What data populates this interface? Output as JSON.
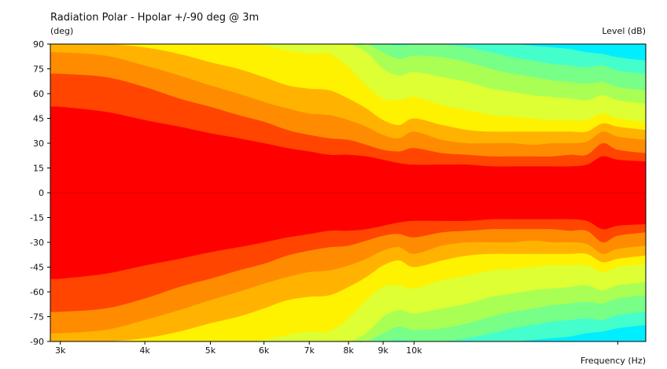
{
  "chart_data": {
    "type": "heatmap",
    "title": "Radiation Polar - Hpolar +/-90 deg @ 3m",
    "ylabel": "(deg)",
    "zlabel": "Level  (dB)",
    "xlabel": "Frequency  (Hz)",
    "x_scale": "log",
    "xlim": [
      2900,
      22000
    ],
    "ylim": [
      -90,
      90
    ],
    "x_ticks": [
      {
        "value": 3000,
        "label": "3k"
      },
      {
        "value": 4000,
        "label": "4k"
      },
      {
        "value": 5000,
        "label": "5k"
      },
      {
        "value": 6000,
        "label": "6k"
      },
      {
        "value": 7000,
        "label": "7k"
      },
      {
        "value": 8000,
        "label": "8k"
      },
      {
        "value": 9000,
        "label": "9k"
      },
      {
        "value": 10000,
        "label": "10k"
      },
      {
        "value": 20000,
        "label": ""
      }
    ],
    "y_ticks": [
      {
        "value": 90,
        "label": "90"
      },
      {
        "value": 75,
        "label": "75"
      },
      {
        "value": 60,
        "label": "60"
      },
      {
        "value": 45,
        "label": "45"
      },
      {
        "value": 30,
        "label": "30"
      },
      {
        "value": 15,
        "label": "15"
      },
      {
        "value": 0,
        "label": "0"
      },
      {
        "value": -15,
        "label": "-15"
      },
      {
        "value": -30,
        "label": "-30"
      },
      {
        "value": -45,
        "label": "-45"
      },
      {
        "value": -60,
        "label": "-60"
      },
      {
        "value": -75,
        "label": "-75"
      },
      {
        "value": -90,
        "label": "-90"
      }
    ],
    "band_colors": [
      "#ff0000",
      "#ff4500",
      "#ff8c00",
      "#ffb300",
      "#fff200",
      "#ddff33",
      "#aaff55",
      "#77ff88",
      "#44ffcc",
      "#00eeff"
    ],
    "boundary_frequencies": [
      2900,
      3000,
      3500,
      4000,
      4500,
      5000,
      5500,
      6000,
      6500,
      7000,
      7500,
      8000,
      8500,
      9000,
      9500,
      10000,
      11000,
      12000,
      13000,
      14000,
      15000,
      16000,
      17000,
      18000,
      19000,
      20000,
      22000
    ],
    "band_boundaries_deg": [
      {
        "band": 1,
        "values": [
          52,
          52,
          49,
          44,
          40,
          36,
          33,
          30,
          27,
          25,
          23,
          23,
          22,
          20,
          18,
          17,
          17,
          17,
          16,
          16,
          16,
          16,
          16,
          17,
          22,
          20,
          19
        ]
      },
      {
        "band": 2,
        "values": [
          72,
          72,
          70,
          64,
          57,
          52,
          47,
          43,
          38,
          35,
          33,
          32,
          29,
          26,
          25,
          27,
          24,
          23,
          22,
          22,
          22,
          22,
          23,
          23,
          30,
          26,
          24
        ]
      },
      {
        "band": 3,
        "values": [
          85,
          85,
          83,
          77,
          71,
          65,
          60,
          55,
          51,
          48,
          47,
          44,
          40,
          35,
          33,
          37,
          32,
          30,
          30,
          30,
          29,
          30,
          30,
          31,
          37,
          34,
          32
        ]
      },
      {
        "band": 4,
        "values": [
          90,
          90,
          90,
          88,
          84,
          79,
          75,
          70,
          65,
          63,
          62,
          57,
          51,
          44,
          41,
          45,
          41,
          38,
          37,
          37,
          37,
          37,
          37,
          37,
          42,
          40,
          38
        ]
      },
      {
        "band": 5,
        "values": [
          90,
          90,
          90,
          90,
          90,
          90,
          90,
          89,
          86,
          84,
          84,
          76,
          65,
          57,
          56,
          58,
          53,
          50,
          47,
          46,
          45,
          44,
          44,
          44,
          48,
          45,
          43
        ]
      },
      {
        "band": 6,
        "values": [
          90,
          90,
          90,
          90,
          90,
          90,
          90,
          90,
          90,
          90,
          90,
          90,
          85,
          75,
          71,
          73,
          70,
          67,
          63,
          61,
          59,
          58,
          57,
          56,
          59,
          56,
          54
        ]
      },
      {
        "band": 7,
        "values": [
          90,
          90,
          90,
          90,
          90,
          90,
          90,
          90,
          90,
          90,
          90,
          90,
          90,
          85,
          81,
          83,
          82,
          79,
          75,
          72,
          70,
          68,
          67,
          66,
          67,
          64,
          62
        ]
      },
      {
        "band": 8,
        "values": [
          90,
          90,
          90,
          90,
          90,
          90,
          90,
          90,
          90,
          90,
          90,
          90,
          90,
          90,
          89,
          90,
          90,
          88,
          85,
          82,
          80,
          78,
          77,
          76,
          77,
          74,
          72
        ]
      },
      {
        "band": 9,
        "values": [
          90,
          90,
          90,
          90,
          90,
          90,
          90,
          90,
          90,
          90,
          90,
          90,
          90,
          90,
          90,
          90,
          90,
          90,
          90,
          90,
          89,
          88,
          87,
          85,
          84,
          82,
          80
        ]
      }
    ]
  }
}
